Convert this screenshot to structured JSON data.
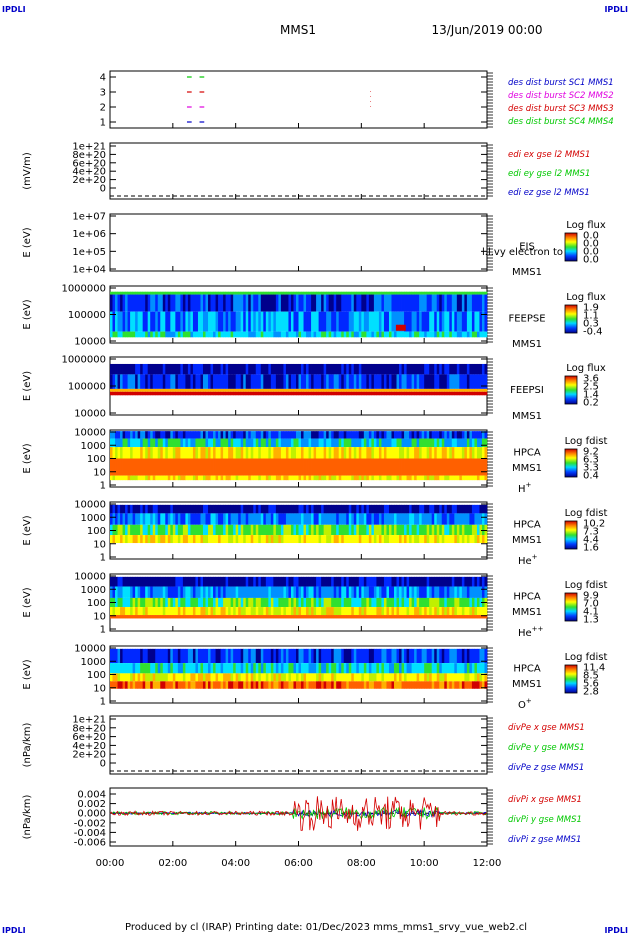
{
  "header": {
    "corner_left_top": "IPDLI",
    "corner_right_top": "IPDLI",
    "corner_left_bottom": "IPDLI",
    "corner_right_bottom": "IPDLI",
    "spacecraft": "MMS1",
    "datetime": "13/Jun/2019 00:00"
  },
  "footer": {
    "text": "Produced by cl (IRAP)   Printing date: 01/Dec/2023   mms_mms1_srvy_vue_web2.cl"
  },
  "colors": {
    "red": "#d40000",
    "green": "#00c800",
    "blue": "#0000c8",
    "magenta": "#e000e0"
  },
  "chart_data": {
    "type": "multi-panel stacked time series",
    "x": {
      "ticks": [
        "00:00",
        "02:00",
        "04:00",
        "06:00",
        "08:00",
        "10:00",
        "12:00"
      ],
      "range_hours": [
        0,
        12
      ]
    },
    "panels": [
      {
        "id": "burst",
        "ylabel": "",
        "yticks": [
          "4",
          "3",
          "2",
          "1"
        ],
        "legend": [
          {
            "text": "des dist burst SC1 MMS1",
            "color": "#0000c8"
          },
          {
            "text": "des dist burst SC2 MMS2",
            "color": "#e000e0"
          },
          {
            "text": "des dist burst SC3 MMS3",
            "color": "#d40000"
          },
          {
            "text": "des dist burst SC4 MMS4",
            "color": "#00c800"
          }
        ],
        "intervals_hours": [
          {
            "sc": 4,
            "start": 2.45,
            "end": 2.6,
            "color": "#00c800"
          },
          {
            "sc": 4,
            "start": 2.85,
            "end": 3.0,
            "color": "#00c800"
          },
          {
            "sc": 3,
            "start": 2.45,
            "end": 2.6,
            "color": "#d40000"
          },
          {
            "sc": 3,
            "start": 2.85,
            "end": 3.0,
            "color": "#d40000"
          },
          {
            "sc": 2,
            "start": 2.45,
            "end": 2.6,
            "color": "#e000e0"
          },
          {
            "sc": 2,
            "start": 2.85,
            "end": 3.0,
            "color": "#e000e0"
          },
          {
            "sc": 1,
            "start": 2.45,
            "end": 2.6,
            "color": "#0000c8"
          },
          {
            "sc": 1,
            "start": 2.85,
            "end": 3.0,
            "color": "#0000c8"
          }
        ]
      },
      {
        "id": "edi",
        "ylabel": "(mV/m)",
        "yticks": [
          "1e+21",
          "8e+20",
          "6e+20",
          "4e+20",
          "2e+20",
          "0"
        ],
        "legend": [
          {
            "text": "edi ex gse l2 MMS1",
            "color": "#d40000"
          },
          {
            "text": "edi ey gse l2 MMS1",
            "color": "#00c800"
          },
          {
            "text": "edi ez gse l2 MMS1",
            "color": "#0000c8"
          }
        ]
      },
      {
        "id": "eis",
        "ylabel": "E (eV)",
        "yticks": [
          "1e+07",
          "1e+06",
          "1e+05",
          "1e+04"
        ],
        "right_labels": [
          "EIS",
          "MMS1"
        ],
        "overlap_text": "l.l.vy electron to",
        "colorbar": {
          "title": "Log flux",
          "ticks": [
            "0.0",
            "0.0",
            "0.0",
            "0.0"
          ]
        }
      },
      {
        "id": "feepse",
        "ylabel": "E (eV)",
        "yticks": [
          "1000000",
          "100000",
          "10000"
        ],
        "right_labels": [
          "FEEPSE",
          "MMS1"
        ],
        "colorbar": {
          "title": "Log flux",
          "ticks": [
            "1.9",
            "1.1",
            "0.3",
            "-0.4"
          ]
        }
      },
      {
        "id": "feepsi",
        "ylabel": "E (eV)",
        "yticks": [
          "1000000",
          "100000",
          "10000"
        ],
        "right_labels": [
          "FEEPSI",
          "MMS1"
        ],
        "colorbar": {
          "title": "Log flux",
          "ticks": [
            "3.6",
            "2.5",
            "1.4",
            "0.2"
          ]
        }
      },
      {
        "id": "hpca_h",
        "ylabel": "E (eV)",
        "yticks": [
          "10000",
          "1000",
          "100",
          "10",
          "1"
        ],
        "right_labels": [
          "HPCA",
          "MMS1",
          "H+"
        ],
        "colorbar": {
          "title": "Log fdist",
          "ticks": [
            "9.2",
            "6.3",
            "3.3",
            "0.4"
          ]
        }
      },
      {
        "id": "hpca_he",
        "ylabel": "E (eV)",
        "yticks": [
          "10000",
          "1000",
          "100",
          "10",
          "1"
        ],
        "right_labels": [
          "HPCA",
          "MMS1",
          "He+"
        ],
        "colorbar": {
          "title": "Log fdist",
          "ticks": [
            "10.2",
            "7.3",
            "4.4",
            "1.6"
          ]
        }
      },
      {
        "id": "hpca_hepp",
        "ylabel": "E (eV)",
        "yticks": [
          "10000",
          "1000",
          "100",
          "10",
          "1"
        ],
        "right_labels": [
          "HPCA",
          "MMS1",
          "He++"
        ],
        "colorbar": {
          "title": "Log fdist",
          "ticks": [
            "9.9",
            "7.0",
            "4.1",
            "1.3"
          ]
        }
      },
      {
        "id": "hpca_o",
        "ylabel": "E (eV)",
        "yticks": [
          "10000",
          "1000",
          "100",
          "10",
          "1"
        ],
        "right_labels": [
          "HPCA",
          "MMS1",
          "O+"
        ],
        "colorbar": {
          "title": "Log fdist",
          "ticks": [
            "11.4",
            "8.5",
            "5.6",
            "2.8"
          ]
        }
      },
      {
        "id": "divpe",
        "ylabel": "(nPa/km)",
        "yticks": [
          "1e+21",
          "8e+20",
          "6e+20",
          "4e+20",
          "2e+20",
          "0"
        ],
        "legend": [
          {
            "text": "divPe x gse MMS1",
            "color": "#d40000"
          },
          {
            "text": "divPe y gse MMS1",
            "color": "#00c800"
          },
          {
            "text": "divPe z gse MMS1",
            "color": "#0000c8"
          }
        ]
      },
      {
        "id": "divpi",
        "ylabel": "(nPa/km)",
        "yticks": [
          "0.004",
          "0.002",
          "0.000",
          "-0.002",
          "-0.004",
          "-0.006"
        ],
        "ylim": [
          -0.0065,
          0.005
        ],
        "legend": [
          {
            "text": "divPi x gse MMS1",
            "color": "#d40000"
          },
          {
            "text": "divPi y gse MMS1",
            "color": "#00c800"
          },
          {
            "text": "divPi z gse MMS1",
            "color": "#0000c8"
          }
        ]
      }
    ]
  }
}
